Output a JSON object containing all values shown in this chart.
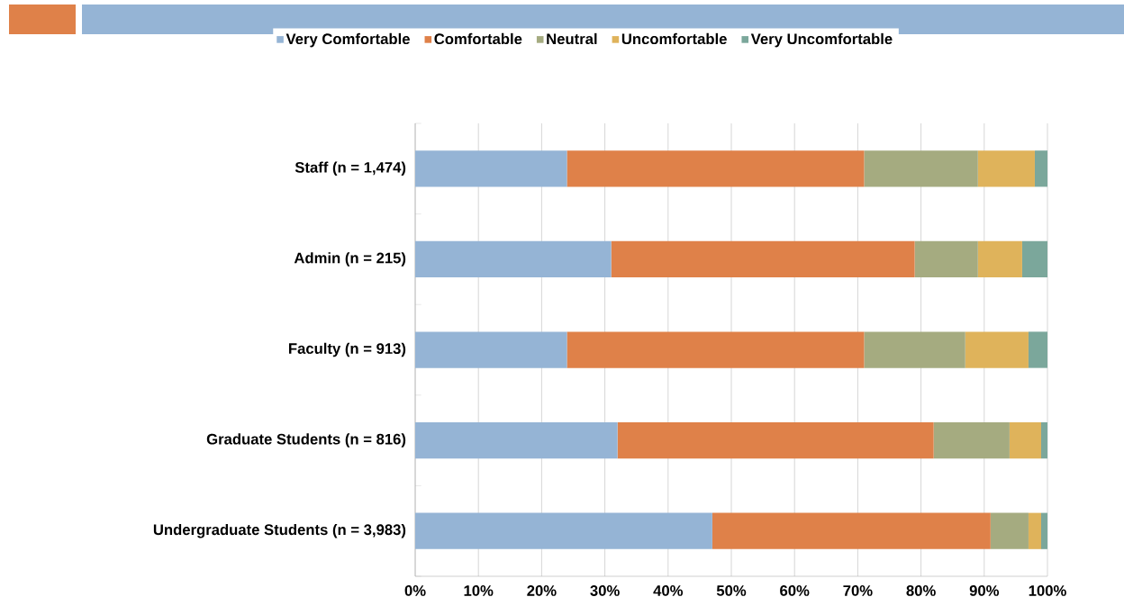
{
  "chart_data": {
    "type": "bar",
    "orientation": "horizontal",
    "stacked": true,
    "categories": [
      "Staff (n = 1,474)",
      "Admin (n = 215)",
      "Faculty (n = 913)",
      "Graduate Students (n = 816)",
      "Undergraduate Students (n = 3,983)"
    ],
    "series": [
      {
        "name": "Very Comfortable",
        "color": "#95b4d5",
        "values": [
          24,
          31,
          24,
          32,
          47
        ]
      },
      {
        "name": "Comfortable",
        "color": "#df8149",
        "values": [
          47,
          48,
          47,
          50,
          44
        ]
      },
      {
        "name": "Neutral",
        "color": "#a5ab80",
        "values": [
          18,
          10,
          16,
          12,
          6
        ]
      },
      {
        "name": "Uncomfortable",
        "color": "#dfb35b",
        "values": [
          9,
          7,
          10,
          5,
          2
        ]
      },
      {
        "name": "Very Uncomfortable",
        "color": "#7ba79b",
        "values": [
          2,
          4,
          3,
          1,
          1
        ]
      }
    ],
    "xlim": [
      0,
      100
    ],
    "xticks": [
      {
        "value": 0,
        "label": "0%"
      },
      {
        "value": 10,
        "label": "10%"
      },
      {
        "value": 20,
        "label": "20%"
      },
      {
        "value": 30,
        "label": "30%"
      },
      {
        "value": 40,
        "label": "40%"
      },
      {
        "value": 50,
        "label": "50%"
      },
      {
        "value": 60,
        "label": "60%"
      },
      {
        "value": 70,
        "label": "70%"
      },
      {
        "value": 80,
        "label": "80%"
      },
      {
        "value": 90,
        "label": "90%"
      },
      {
        "value": 100,
        "label": "100%"
      }
    ],
    "grid": "x",
    "legend": "top"
  }
}
